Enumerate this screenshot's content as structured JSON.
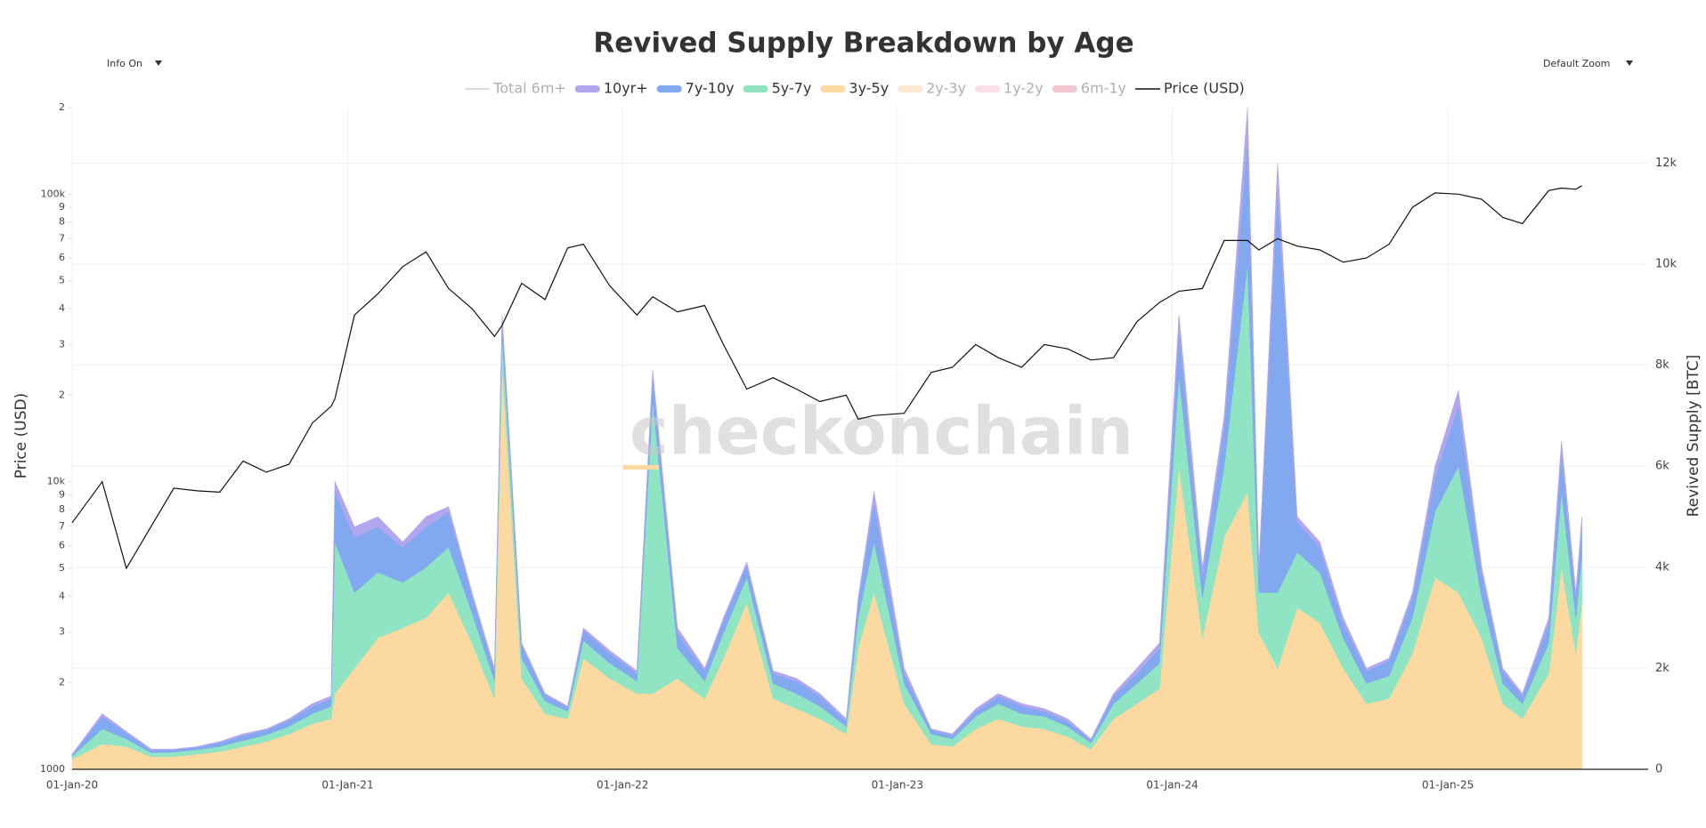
{
  "chart_data": {
    "type": "stacked_area_line",
    "title": "Revived Supply Breakdown by Age",
    "controls": [
      "Info On",
      "Default Zoom"
    ],
    "watermark": "checkonchain",
    "ylabel": "Price (USD)",
    "y2label": "Revived Supply [BTC]",
    "yscale": "log",
    "grid": true,
    "legend": "top",
    "x": [
      "2020-01-01",
      "2020-02-10",
      "2020-03-13",
      "2020-04-15",
      "2020-05-15",
      "2020-06-15",
      "2020-07-15",
      "2020-08-15",
      "2020-09-15",
      "2020-10-15",
      "2020-11-15",
      "2020-12-10",
      "2020-12-15",
      "2021-01-10",
      "2021-02-10",
      "2021-03-15",
      "2021-04-15",
      "2021-05-15",
      "2021-06-15",
      "2021-07-15",
      "2021-07-25",
      "2021-08-20",
      "2021-09-20",
      "2021-10-20",
      "2021-11-10",
      "2021-12-15",
      "2022-01-20",
      "2022-02-10",
      "2022-03-15",
      "2022-04-20",
      "2022-05-15",
      "2022-06-15",
      "2022-07-20",
      "2022-08-20",
      "2022-09-20",
      "2022-10-25",
      "2022-11-10",
      "2022-12-01",
      "2023-01-10",
      "2023-02-15",
      "2023-03-15",
      "2023-04-15",
      "2023-05-15",
      "2023-06-15",
      "2023-07-15",
      "2023-08-15",
      "2023-09-15",
      "2023-10-15",
      "2023-11-15",
      "2023-12-15",
      "2024-01-10",
      "2024-02-10",
      "2024-03-10",
      "2024-04-10",
      "2024-04-25",
      "2024-05-20",
      "2024-06-15",
      "2024-07-15",
      "2024-08-15",
      "2024-09-15",
      "2024-10-15",
      "2024-11-15",
      "2024-12-15",
      "2025-01-15",
      "2025-02-15",
      "2025-03-15",
      "2025-04-10",
      "2025-05-15",
      "2025-06-01",
      "2025-06-20",
      "2025-06-28"
    ],
    "xlim": [
      "2020-01-01",
      "2025-09-24"
    ],
    "xticks": [
      {
        "value": "2020-01-01",
        "label": "01-Jan-20"
      },
      {
        "value": "2021-01-01",
        "label": "01-Jan-21"
      },
      {
        "value": "2022-01-01",
        "label": "01-Jan-22"
      },
      {
        "value": "2023-01-01",
        "label": "01-Jan-23"
      },
      {
        "value": "2024-01-01",
        "label": "01-Jan-24"
      },
      {
        "value": "2025-01-01",
        "label": "01-Jan-25"
      }
    ],
    "ylim": [
      1000,
      200000
    ],
    "yticks": [
      1000,
      {
        "value": 2000,
        "label": "2"
      },
      {
        "value": 3000,
        "label": "3"
      },
      {
        "value": 4000,
        "label": "4"
      },
      {
        "value": 5000,
        "label": "5"
      },
      {
        "value": 6000,
        "label": "6"
      },
      {
        "value": 7000,
        "label": "7"
      },
      {
        "value": 8000,
        "label": "8"
      },
      {
        "value": 9000,
        "label": "9"
      },
      {
        "value": 10000,
        "label": "10k"
      },
      {
        "value": 20000,
        "label": "2"
      },
      {
        "value": 30000,
        "label": "3"
      },
      {
        "value": 40000,
        "label": "4"
      },
      {
        "value": 50000,
        "label": "5"
      },
      {
        "value": 60000,
        "label": "6"
      },
      {
        "value": 70000,
        "label": "7"
      },
      {
        "value": 80000,
        "label": "8"
      },
      {
        "value": 90000,
        "label": "9"
      },
      {
        "value": 100000,
        "label": "100k"
      },
      {
        "value": 200000,
        "label": "2"
      }
    ],
    "y2lim": [
      0,
      13100
    ],
    "y2ticks": [
      0,
      {
        "value": 2000,
        "label": "2k"
      },
      {
        "value": 4000,
        "label": "4k"
      },
      {
        "value": 6000,
        "label": "6k"
      },
      {
        "value": 8000,
        "label": "8k"
      },
      {
        "value": 10000,
        "label": "10k"
      },
      {
        "value": 12000,
        "label": "12k"
      }
    ],
    "series": [
      {
        "name": "Total 6m+",
        "color": "#9a9a9a",
        "visible": false,
        "axis": "y2"
      },
      {
        "name": "10yr+",
        "color": "#b3a6ef",
        "axis": "y2",
        "values": [
          10,
          50,
          30,
          20,
          10,
          10,
          20,
          30,
          20,
          30,
          50,
          50,
          200,
          200,
          200,
          100,
          200,
          100,
          50,
          50,
          50,
          50,
          30,
          20,
          50,
          50,
          50,
          100,
          100,
          50,
          50,
          50,
          50,
          50,
          50,
          50,
          50,
          200,
          100,
          20,
          20,
          50,
          50,
          50,
          50,
          50,
          20,
          50,
          100,
          100,
          300,
          150,
          200,
          600,
          100,
          500,
          100,
          100,
          100,
          50,
          50,
          100,
          200,
          300,
          100,
          50,
          50,
          100,
          200,
          100,
          200
        ]
      },
      {
        "name": "7y-10y",
        "color": "#82a9f0",
        "axis": "y2",
        "values": [
          30,
          250,
          120,
          50,
          50,
          50,
          80,
          100,
          100,
          120,
          150,
          150,
          1000,
          1100,
          900,
          700,
          800,
          700,
          350,
          200,
          350,
          250,
          120,
          80,
          200,
          200,
          150,
          500,
          300,
          200,
          250,
          250,
          200,
          250,
          200,
          100,
          350,
          800,
          200,
          80,
          80,
          100,
          150,
          150,
          100,
          100,
          60,
          150,
          200,
          300,
          900,
          450,
          800,
          2500,
          400,
          8000,
          600,
          500,
          300,
          250,
          300,
          400,
          700,
          1200,
          500,
          250,
          150,
          400,
          800,
          400,
          600
        ]
      },
      {
        "name": "5y-7y",
        "color": "#8fe5c3",
        "axis": "y2",
        "values": [
          60,
          300,
          150,
          80,
          90,
          90,
          100,
          120,
          130,
          150,
          200,
          250,
          3000,
          1500,
          1300,
          900,
          1000,
          900,
          600,
          350,
          600,
          400,
          250,
          150,
          350,
          300,
          250,
          5800,
          600,
          350,
          500,
          500,
          300,
          300,
          250,
          150,
          600,
          1000,
          400,
          200,
          150,
          250,
          300,
          250,
          250,
          200,
          120,
          300,
          400,
          500,
          1800,
          800,
          1400,
          4500,
          800,
          1500,
          1100,
          1000,
          600,
          400,
          450,
          700,
          1300,
          2500,
          800,
          400,
          300,
          600,
          1500,
          700,
          900
        ]
      },
      {
        "name": "3y-5y",
        "color": "#fcd9a1",
        "axis": "y2",
        "values": [
          200,
          500,
          450,
          250,
          250,
          300,
          350,
          450,
          550,
          700,
          900,
          1000,
          1500,
          2000,
          2600,
          2800,
          3000,
          3500,
          2500,
          1400,
          8000,
          1800,
          1100,
          1000,
          2200,
          1800,
          1500,
          1500,
          1800,
          1400,
          2200,
          3300,
          1400,
          1200,
          1000,
          700,
          2400,
          3500,
          1300,
          500,
          450,
          800,
          1000,
          850,
          800,
          650,
          400,
          1000,
          1300,
          1600,
          6000,
          2600,
          4600,
          5500,
          2700,
          2000,
          3200,
          2900,
          2000,
          1300,
          1400,
          2300,
          3800,
          3500,
          2600,
          1300,
          1000,
          1900,
          4000,
          2300,
          3300
        ]
      },
      {
        "name": "2y-3y",
        "color": "#fbd8b0",
        "visible": false,
        "axis": "y2"
      },
      {
        "name": "1y-2y",
        "color": "#f7c8d8",
        "visible": false,
        "axis": "y2"
      },
      {
        "name": "6m-1y",
        "color": "#e8a3b3",
        "visible": false,
        "axis": "y2"
      },
      {
        "name": "Price (USD)",
        "color": "#111111",
        "axis": "y",
        "values": [
          7200,
          10000,
          5000,
          7000,
          9500,
          9300,
          9200,
          11800,
          10800,
          11500,
          16000,
          18300,
          19400,
          38000,
          45000,
          56000,
          63000,
          47000,
          40000,
          32000,
          35000,
          49000,
          43000,
          65000,
          67000,
          48000,
          38000,
          44000,
          39000,
          41000,
          30000,
          21000,
          23000,
          21000,
          19000,
          20000,
          16500,
          17000,
          17300,
          24000,
          25000,
          30000,
          27000,
          25000,
          30000,
          29000,
          26500,
          27000,
          36000,
          42000,
          46000,
          47000,
          69000,
          69000,
          64000,
          70000,
          66000,
          64000,
          58000,
          60000,
          67000,
          90000,
          101000,
          100000,
          96000,
          83000,
          79000,
          103000,
          105000,
          104000,
          107000
        ]
      }
    ]
  }
}
